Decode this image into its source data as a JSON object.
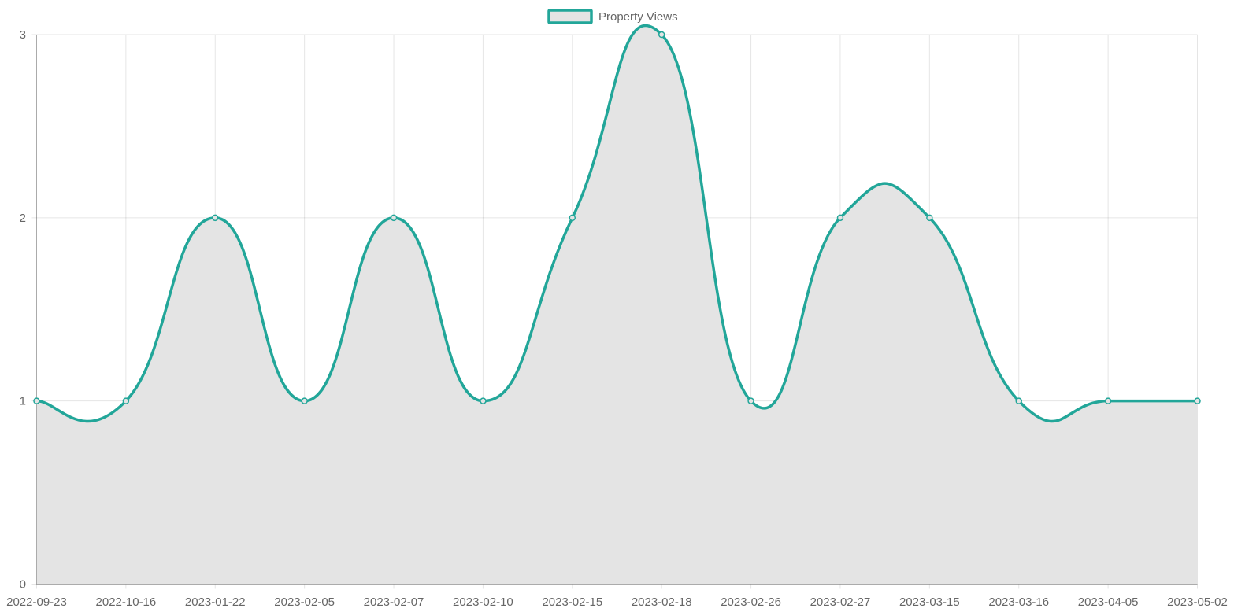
{
  "chart_data": {
    "type": "line",
    "filled": true,
    "smooth": true,
    "grid": true,
    "legend_position": "top-center",
    "title": "",
    "xlabel": "",
    "ylabel": "",
    "categories": [
      "2022-09-23",
      "2022-10-16",
      "2023-01-22",
      "2023-02-05",
      "2023-02-07",
      "2023-02-10",
      "2023-02-15",
      "2023-02-18",
      "2023-02-26",
      "2023-02-27",
      "2023-03-15",
      "2023-03-16",
      "2023-04-05",
      "2023-05-02"
    ],
    "ylim": [
      0,
      3
    ],
    "yticks": [
      0,
      1,
      2,
      3
    ],
    "series": [
      {
        "name": "Property Views",
        "values": [
          1,
          1,
          2,
          1,
          2,
          1,
          2,
          3,
          1,
          2,
          2,
          1,
          1,
          1
        ],
        "line_color": "#22a699",
        "fill_color": "#e4e4e4"
      }
    ]
  }
}
